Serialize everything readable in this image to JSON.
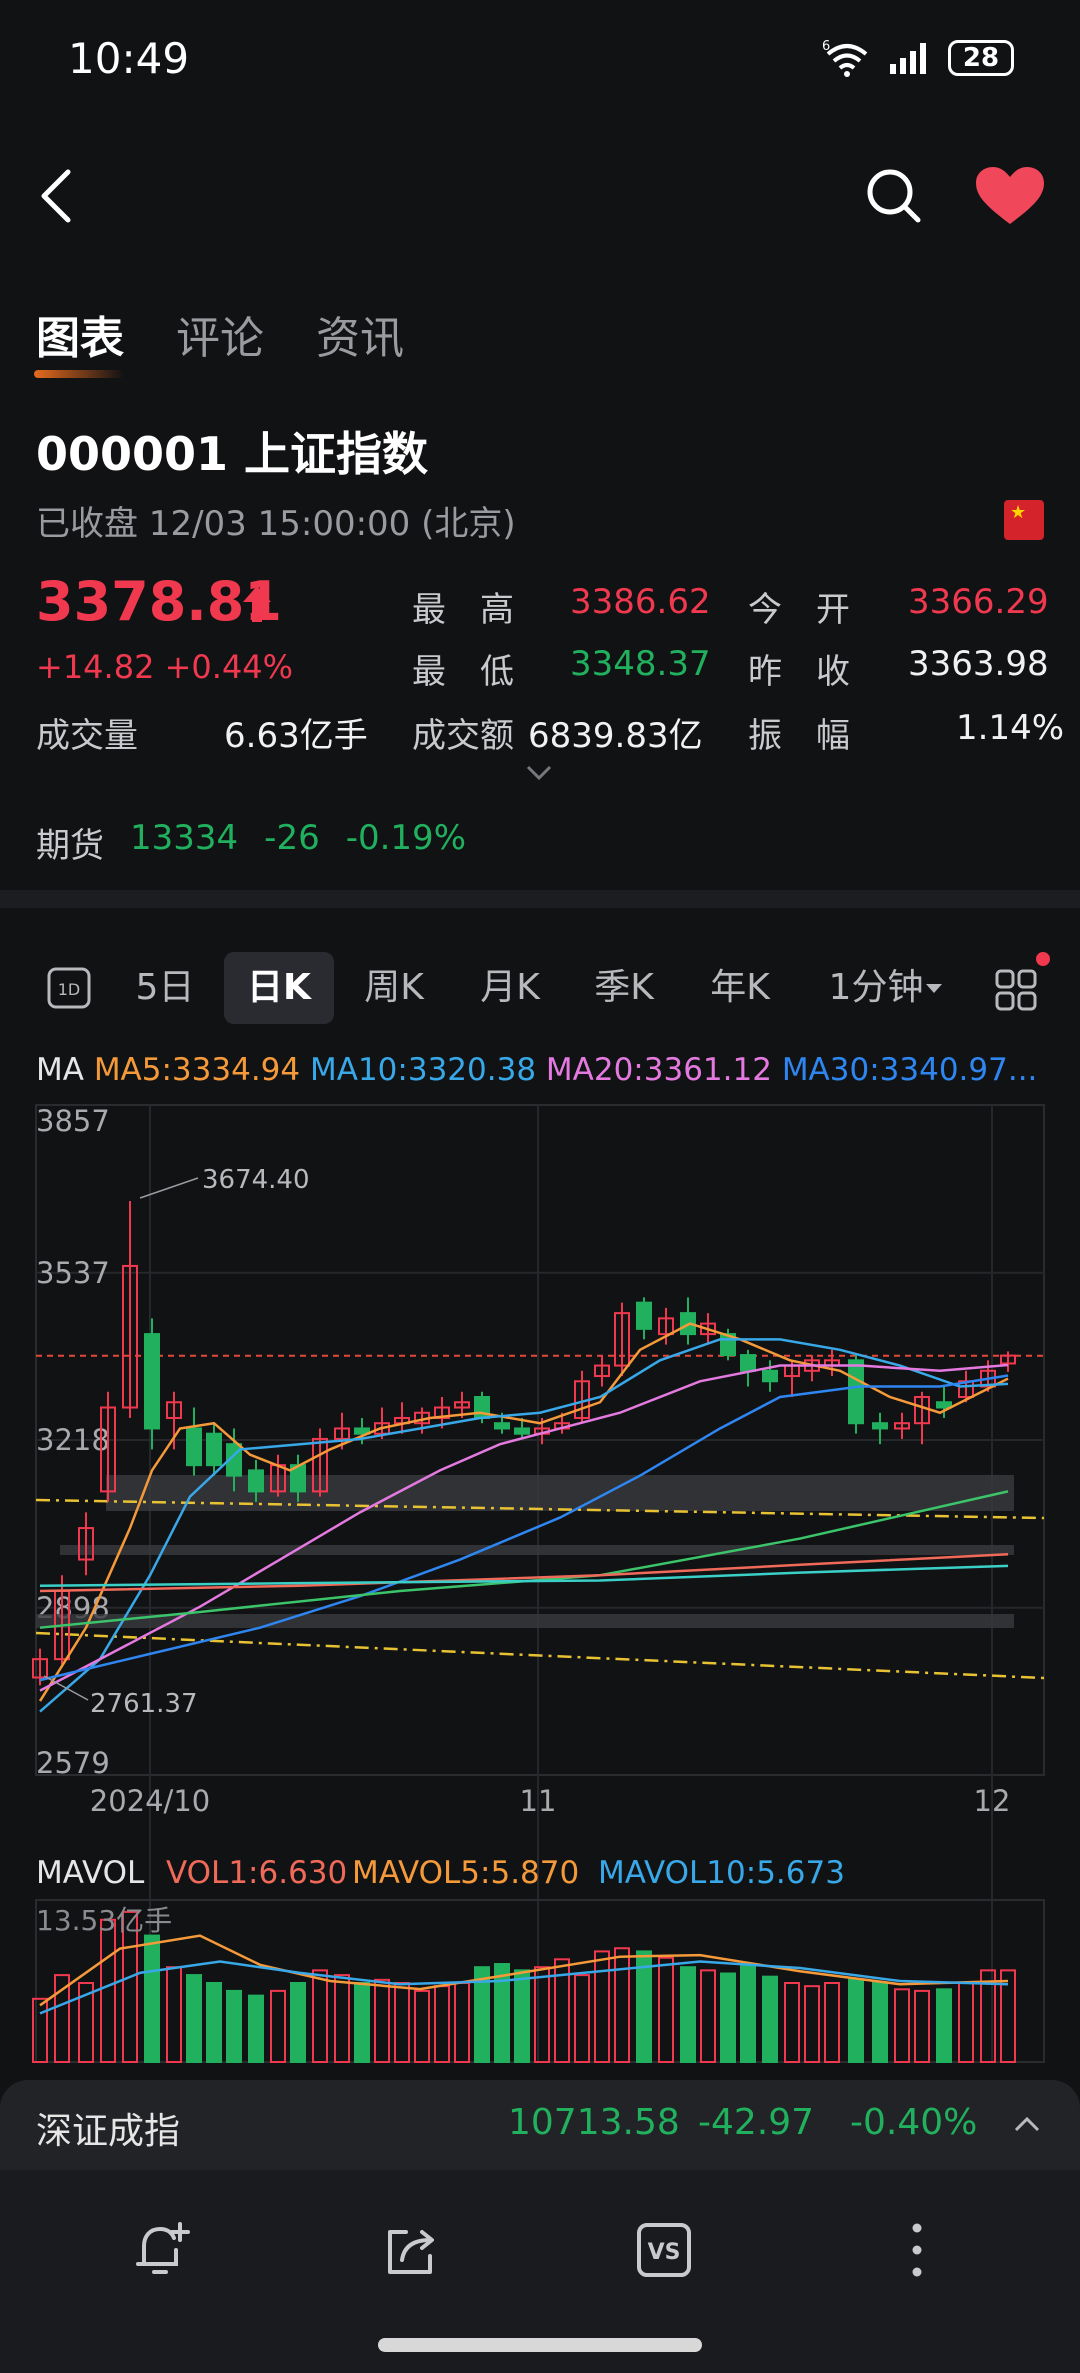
{
  "status_bar": {
    "time": "10:49",
    "battery": "28",
    "wifi_label": "6"
  },
  "tabs": [
    {
      "label": "图表",
      "active": true
    },
    {
      "label": "评论",
      "active": false
    },
    {
      "label": "资讯",
      "active": false
    }
  ],
  "stock": {
    "name": "000001 上证指数",
    "status": "已收盘   12/03 15:00:00 (北京)",
    "price": "3378.81",
    "change": "+14.82  +0.44%"
  },
  "quote": {
    "high_label": "最　高",
    "high": "3386.62",
    "open_label": "今　开",
    "open": "3366.29",
    "low_label": "最　低",
    "low": "3348.37",
    "prev_label": "昨　收",
    "prev": "3363.98",
    "volume_label": "成交量",
    "volume": "6.63亿手",
    "turnover_label": "成交额",
    "turnover": "6839.83亿",
    "amp_label": "振　幅",
    "amp": "1.14%"
  },
  "futures": {
    "label": "期货",
    "price": "13334",
    "change": "-26",
    "pct": "-0.19%"
  },
  "periods": [
    "5日",
    "日K",
    "周K",
    "月K",
    "季K",
    "年K",
    "1分钟"
  ],
  "period_active": "日K",
  "ma": {
    "label": "MA",
    "ma5": "MA5:3334.94",
    "ma10": "MA10:3320.38",
    "ma20": "MA20:3361.12",
    "ma30": "MA30:3340.97..."
  },
  "colors": {
    "up": "#f0394f",
    "down": "#21b15e",
    "ma5": "#f59a3a",
    "ma10": "#39a8e8",
    "ma20": "#e47ae0",
    "ma30": "#2f86f0",
    "ma60": "#3cc46a",
    "ma120": "#f06a5a",
    "ma250": "#3ad0c8"
  },
  "chart_data": {
    "type": "candlestick",
    "y_ticks": [
      "3857",
      "3537",
      "3218",
      "2898",
      "2579"
    ],
    "ylim": [
      2579,
      3857
    ],
    "x_ticks": [
      "2024/10",
      "11",
      "12"
    ],
    "annotations": {
      "high": "3674.40",
      "low": "2761.37"
    },
    "last_close": 3378.81
  },
  "volume": {
    "label": "MAVOL",
    "vol1": "VOL1:6.630",
    "mavol5": "MAVOL5:5.870",
    "mavol10": "MAVOL10:5.673",
    "max_label": "13.53亿手"
  },
  "bottom_index": {
    "name": "深证成指",
    "price": "10713.58",
    "change": "-42.97",
    "pct": "-0.40%"
  }
}
